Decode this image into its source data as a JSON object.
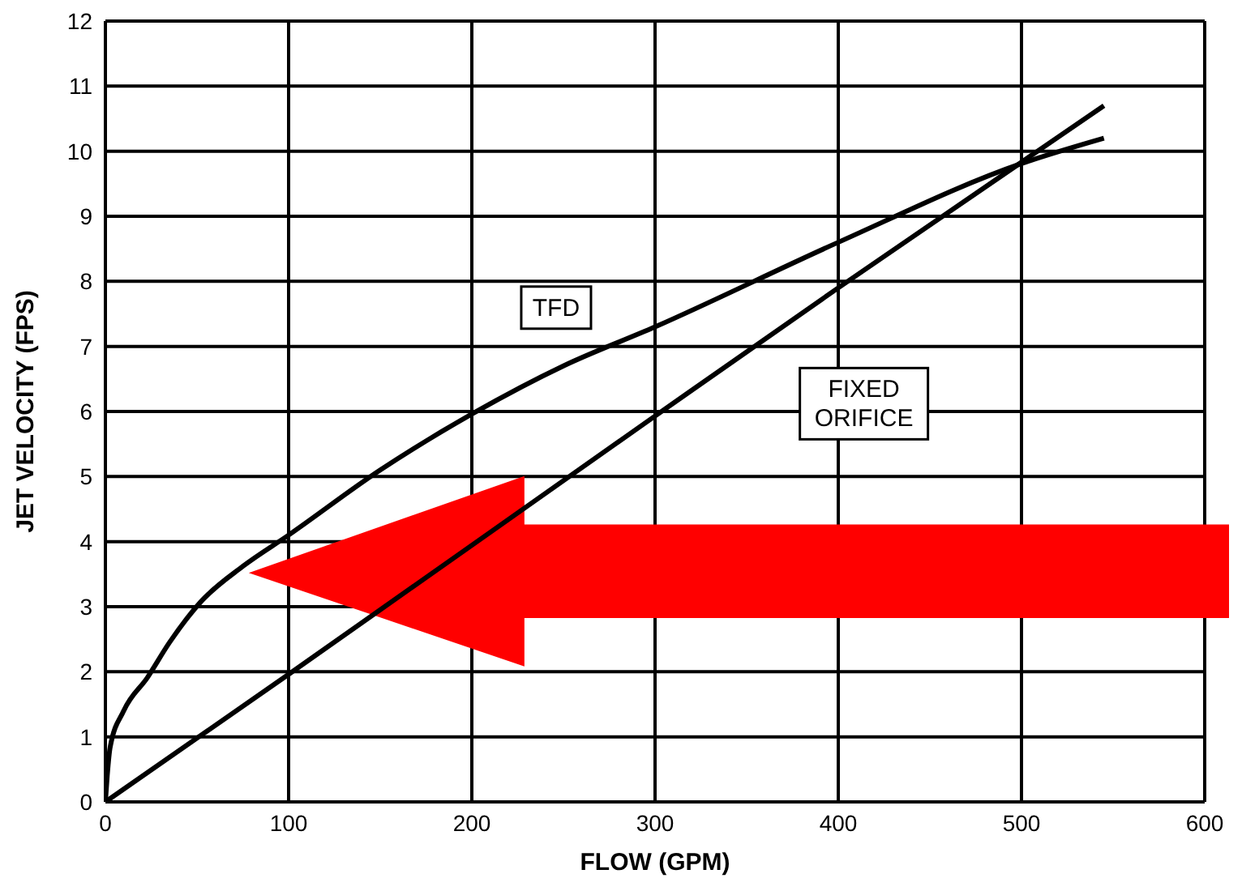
{
  "chart_data": {
    "type": "line",
    "xlabel": "FLOW (GPM)",
    "ylabel": "JET VELOCITY (FPS)",
    "xlim": [
      0,
      600
    ],
    "xticks": [
      0,
      100,
      200,
      300,
      400,
      500,
      600
    ],
    "ylim": [
      0,
      12
    ],
    "yticks": [
      0,
      1,
      2,
      3,
      4,
      5,
      6,
      7,
      8,
      9,
      10,
      11,
      12
    ],
    "grid": true,
    "marker": "none",
    "line_style": "solid",
    "series": [
      {
        "name": "TFD",
        "color": "#000000",
        "x": [
          0,
          1,
          2.6,
          10,
          22.9,
          35,
          51.9,
          75,
          100,
          150,
          200,
          250,
          300,
          400,
          500,
          545
        ],
        "values": [
          0,
          0.4,
          0.84,
          1.4,
          1.91,
          2.45,
          3.07,
          3.62,
          4.1,
          5.1,
          5.96,
          6.7,
          7.3,
          8.6,
          9.81,
          10.2
        ]
      },
      {
        "name": "FIXED\nORIFICE",
        "color": "#000000",
        "x": [
          0,
          100,
          300,
          400,
          545
        ],
        "values": [
          0,
          1.96,
          5.93,
          7.9,
          10.7
        ]
      }
    ]
  }
}
